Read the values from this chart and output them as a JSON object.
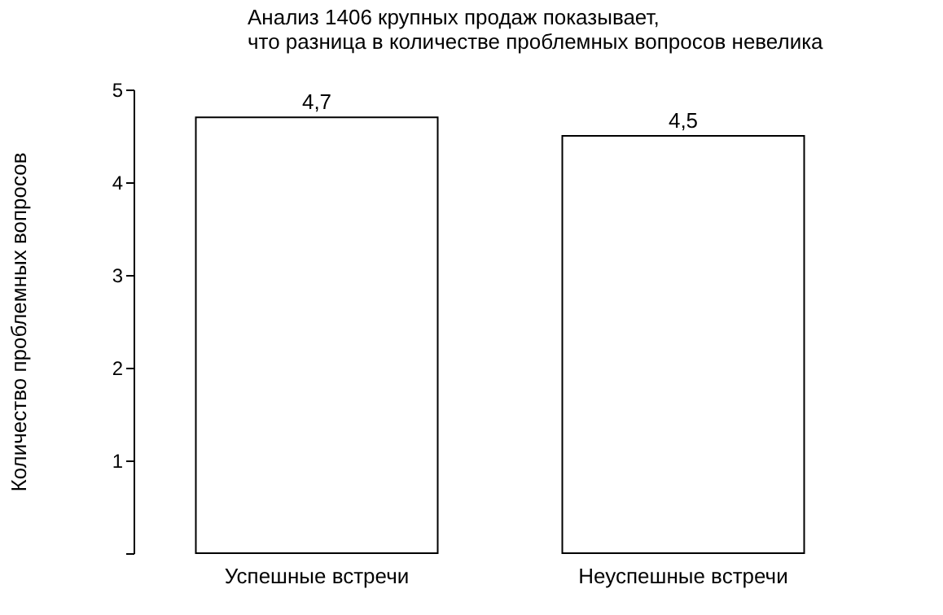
{
  "chart_data": {
    "type": "bar",
    "title": [
      "Анализ 1406 крупных продаж показывает,",
      "что разница в количестве проблемных вопросов невелика"
    ],
    "ylabel": "Количество проблемных вопросов",
    "categories": [
      "Успешные встречи",
      "Неуспешные встречи"
    ],
    "values": [
      4.7,
      4.5
    ],
    "value_labels": [
      "4,7",
      "4,5"
    ],
    "color": "#ffffff",
    "ylim": [
      0,
      5
    ],
    "yticks": [
      {
        "value": 0,
        "label": null
      },
      1,
      2,
      3,
      4,
      5
    ],
    "grid": false
  }
}
